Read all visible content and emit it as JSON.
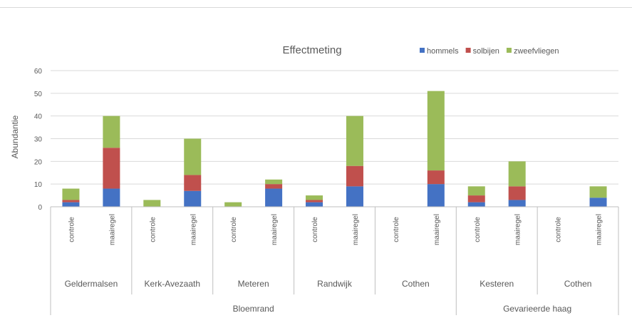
{
  "chart_data": {
    "type": "bar",
    "stacked": true,
    "title": "Effectmeting",
    "ylabel": "Abundantie",
    "xlabel": "",
    "ylim": [
      0,
      60
    ],
    "yticks": [
      0,
      10,
      20,
      30,
      40,
      50,
      60
    ],
    "grid": true,
    "legend": "top-right",
    "categories": [
      "controle",
      "maairegel",
      "controle",
      "maairegel",
      "controle",
      "maairegel",
      "controle",
      "maairegel",
      "controle",
      "maairegel",
      "controle",
      "maairegel",
      "controle",
      "maairegel"
    ],
    "sites": [
      {
        "label": "Geldermalsen",
        "span": 2
      },
      {
        "label": "Kerk-Avezaath",
        "span": 2
      },
      {
        "label": "Meteren",
        "span": 2
      },
      {
        "label": "Randwijk",
        "span": 2
      },
      {
        "label": "Cothen",
        "span": 2
      },
      {
        "label": "Kesteren",
        "span": 2
      },
      {
        "label": "Cothen",
        "span": 2
      }
    ],
    "groups": [
      {
        "label": "Bloemrand",
        "span": 10
      },
      {
        "label": "Gevarieerde haag",
        "span": 4
      }
    ],
    "series": [
      {
        "name": "hommels",
        "color": "#4472c4",
        "values": [
          2,
          8,
          0,
          7,
          0,
          8,
          2,
          9,
          0,
          10,
          2,
          3,
          0,
          4
        ]
      },
      {
        "name": "solbijen",
        "color": "#c0504d",
        "values": [
          1,
          18,
          0,
          7,
          0,
          2,
          1,
          9,
          0,
          6,
          3,
          6,
          0,
          0
        ]
      },
      {
        "name": "zweefvliegen",
        "color": "#9bbb59",
        "values": [
          5,
          14,
          3,
          16,
          2,
          2,
          2,
          22,
          0,
          35,
          4,
          11,
          0,
          5
        ]
      }
    ]
  }
}
